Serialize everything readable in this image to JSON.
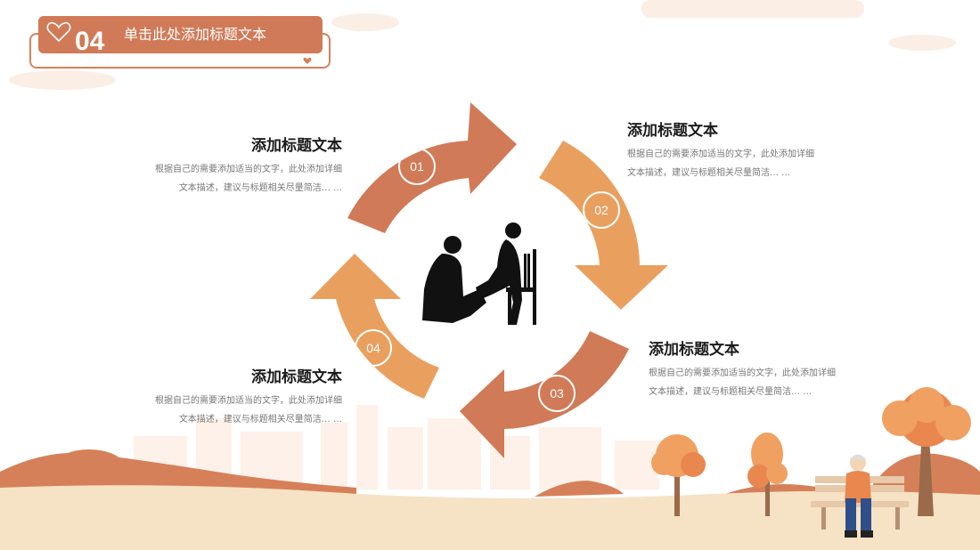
{
  "header": {
    "number": "04",
    "title": "单击此处添加标题文本"
  },
  "blocks": [
    {
      "number": "01",
      "title": "添加标题文本",
      "desc": "根据自己的需要添加适当的文字，此处添加详细\n文本描述，建议与标题相关尽量简洁… …"
    },
    {
      "number": "02",
      "title": "添加标题文本",
      "desc": "根据自己的需要添加适当的文字，此处添加详细\n文本描述，建议与标题相关尽量简洁… …"
    },
    {
      "number": "03",
      "title": "添加标题文本",
      "desc": "根据自己的需要添加适当的文字，此处添加详细\n文本描述，建议与标题相关尽量简洁… …"
    },
    {
      "number": "04",
      "title": "添加标题文本",
      "desc": "根据自己的需要添加适当的文字，此处添加详细\n文本描述，建议与标题相关尽量简洁… …"
    }
  ],
  "colors": {
    "dark_orange": "#d17a57",
    "light_orange": "#e9a05f",
    "ground": "#f6e2c5"
  },
  "icons": [
    "heart-icon",
    "caregiver-silhouette-icon",
    "elderly-man-on-bench-icon",
    "autumn-tree-icon"
  ]
}
